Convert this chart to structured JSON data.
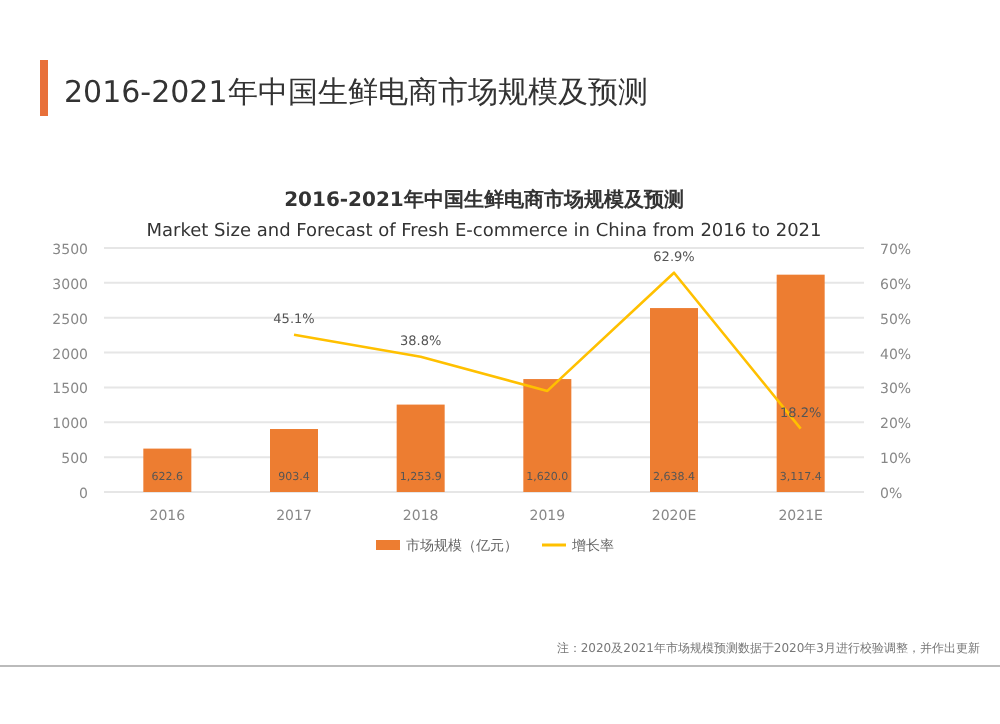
{
  "chart_data": {
    "type": "bar",
    "title": "2016-2021年中国生鲜电商市场规模及预测",
    "subtitle": "2016-2021年中国生鲜电商市场规模及预测\nMarket Size and Forecast of Fresh E-commerce in China from 2016 to 2021",
    "categories": [
      "2016",
      "2017",
      "2018",
      "2019",
      "2020E",
      "2021E"
    ],
    "series": [
      {
        "name": "市场规模（亿元）",
        "color": "#ed7d31",
        "values": [
          622.6,
          903.4,
          1253.9,
          1620.0,
          2638.4,
          3117.4
        ],
        "value_labels": [
          "622.6",
          "903.4",
          "1,253.9",
          "1,620.0",
          "2,638.4",
          "3,117.4"
        ]
      },
      {
        "name": "增长率",
        "type": "line",
        "axis": "y2",
        "color": "#ffc000",
        "values": [
          null,
          45.1,
          38.8,
          29,
          62.9,
          18.2
        ],
        "value_labels": [
          null,
          "45.1%",
          "38.8%",
          null,
          "62.9%",
          "18.2%"
        ]
      }
    ],
    "ylim": [
      0,
      3500
    ],
    "yticks": [
      0,
      500,
      1000,
      1500,
      2000,
      2500,
      3000,
      3500
    ],
    "y2lim": [
      0,
      70
    ],
    "y2ticks": [
      {
        "value": 0,
        "label": "0%"
      },
      {
        "value": 10,
        "label": "10%"
      },
      {
        "value": 20,
        "label": "20%"
      },
      {
        "value": 30,
        "label": "30%"
      },
      {
        "value": 40,
        "label": "40%"
      },
      {
        "value": 50,
        "label": "50%"
      },
      {
        "value": 60,
        "label": "60%"
      },
      {
        "value": 70,
        "label": "70%"
      }
    ],
    "grid": "y",
    "legend": "bottom",
    "marker": "none",
    "annotations": [
      "注：2020及2021年市场规模预测数据于2020年3月进行校验调整，并作出更新"
    ]
  }
}
